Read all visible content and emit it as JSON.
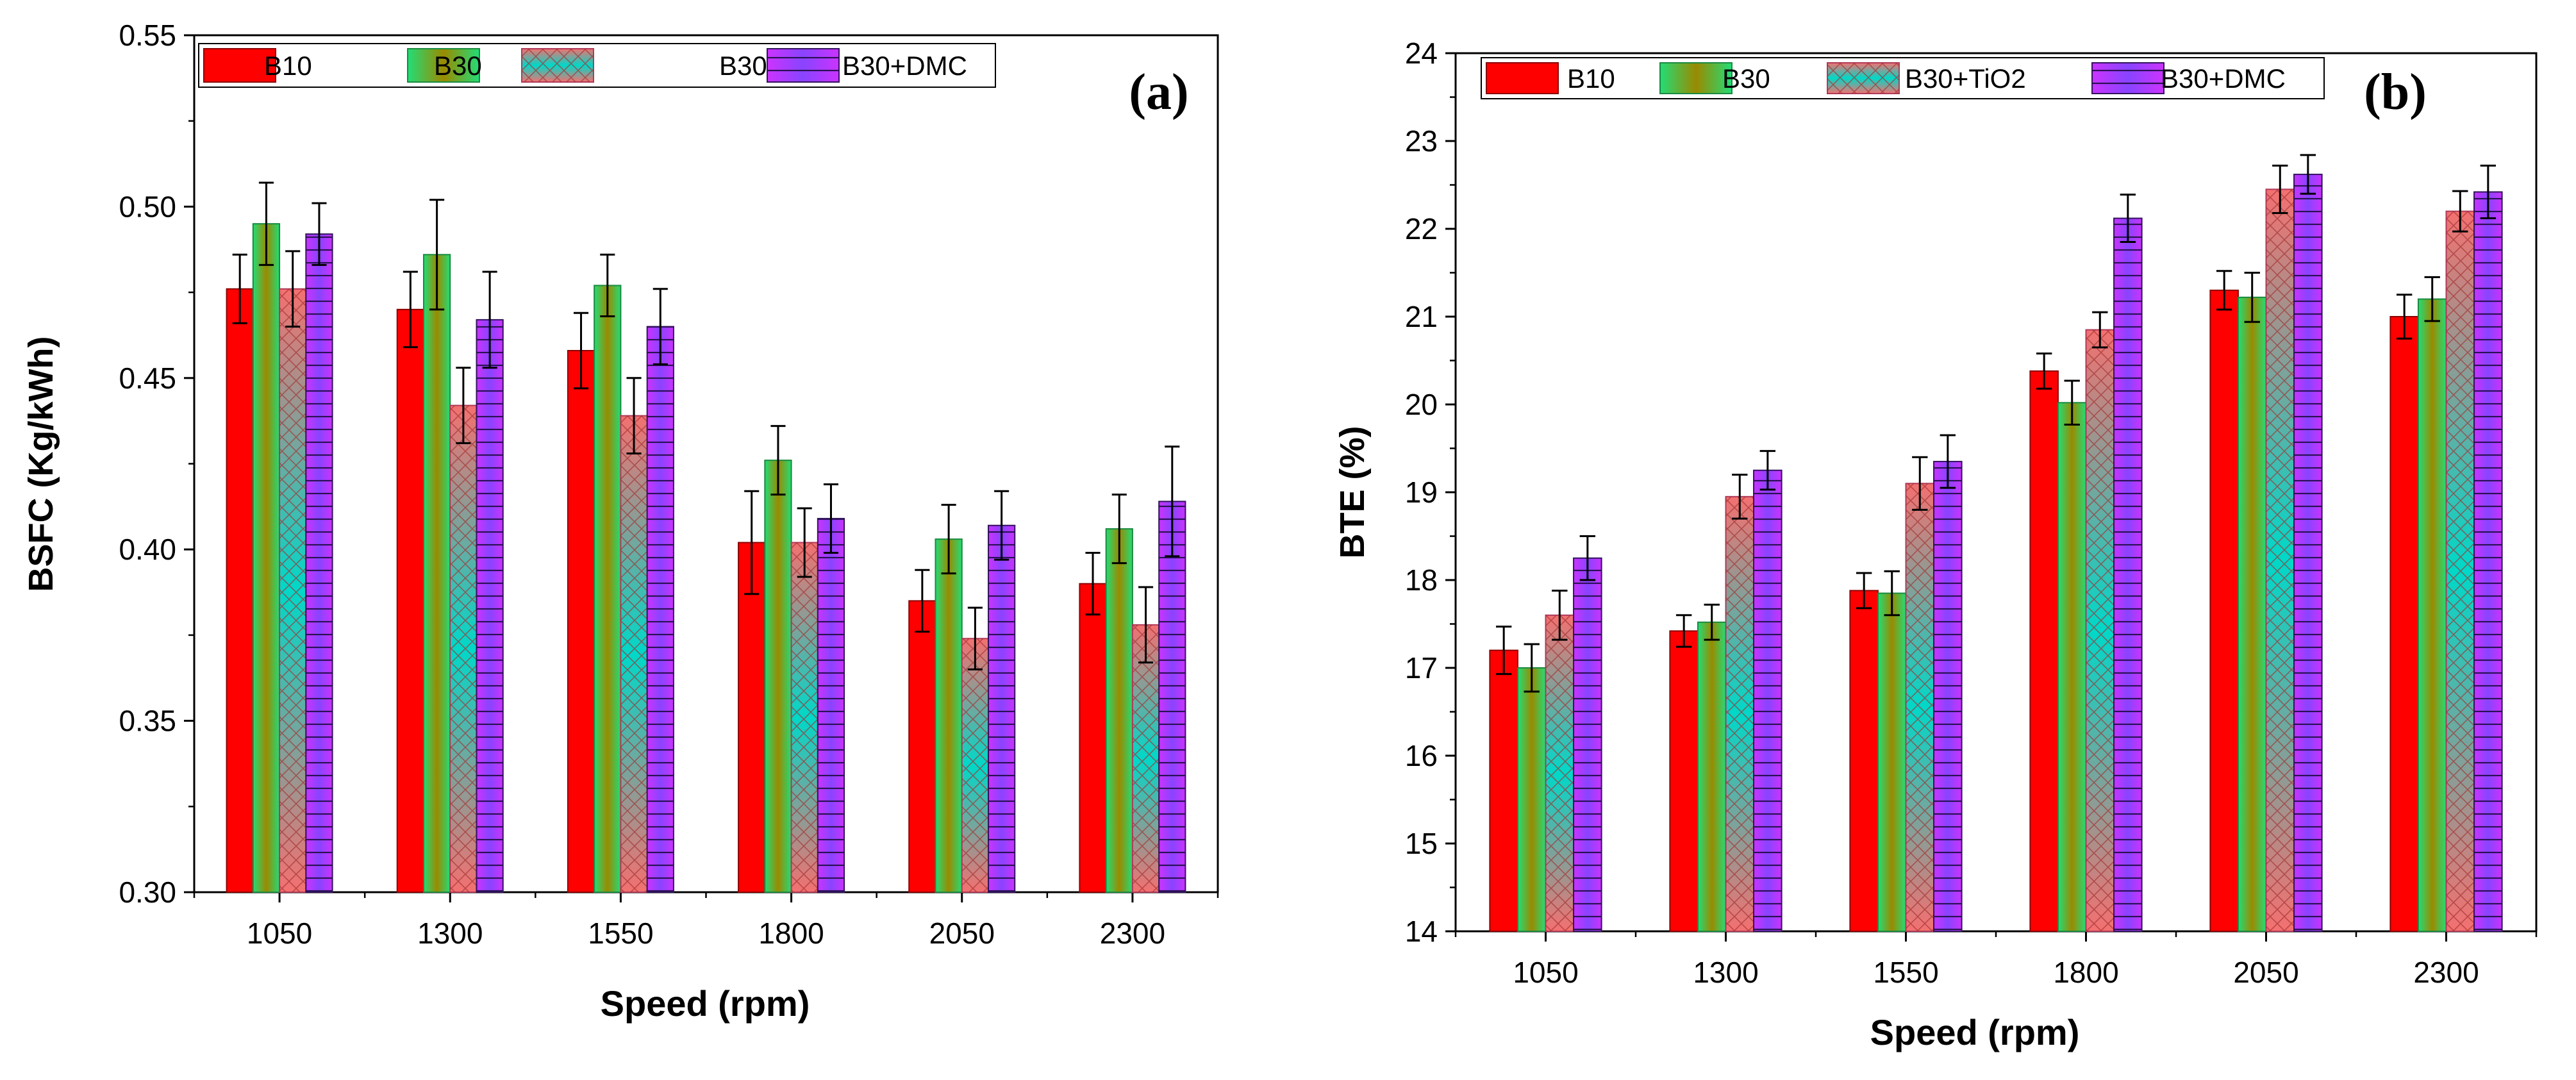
{
  "colors": {
    "B10": "#ff0000",
    "B30": "#22dd77",
    "B30+TiO2": "#f46f6f",
    "B30+DMC": "#cc33ff",
    "B30_mid": "#9a8a00",
    "TiO2_mid": "#00d8c8",
    "DMC_mid": "#8844ff"
  },
  "chart_data": [
    {
      "type": "bar",
      "panel_label": "(a)",
      "categories": [
        "1050",
        "1300",
        "1550",
        "1800",
        "2050",
        "2300"
      ],
      "xlabel": "Speed (rpm)",
      "ylabel": "BSFC (Kg/kWh)",
      "ylim": [
        0.3,
        0.55
      ],
      "yticks": [
        0.3,
        0.35,
        0.4,
        0.45,
        0.5,
        0.55
      ],
      "ytick_labels": [
        "0.30",
        "0.35",
        "0.40",
        "0.45",
        "0.50",
        "0.55"
      ],
      "legend_position": "top-left",
      "series": [
        {
          "name": "B10",
          "values": [
            0.476,
            0.47,
            0.458,
            0.402,
            0.385,
            0.39
          ],
          "errors": [
            0.01,
            0.011,
            0.011,
            0.015,
            0.009,
            0.009
          ]
        },
        {
          "name": "B30",
          "values": [
            0.495,
            0.486,
            0.477,
            0.426,
            0.403,
            0.406
          ],
          "errors": [
            0.012,
            0.016,
            0.009,
            0.01,
            0.01,
            0.01
          ]
        },
        {
          "name": "B30+TiO2",
          "values": [
            0.476,
            0.442,
            0.439,
            0.402,
            0.374,
            0.378
          ],
          "errors": [
            0.011,
            0.011,
            0.011,
            0.01,
            0.009,
            0.011
          ]
        },
        {
          "name": "B30+DMC",
          "values": [
            0.492,
            0.467,
            0.465,
            0.409,
            0.407,
            0.414
          ],
          "errors": [
            0.009,
            0.014,
            0.011,
            0.01,
            0.01,
            0.016
          ]
        }
      ]
    },
    {
      "type": "bar",
      "panel_label": "(b)",
      "categories": [
        "1050",
        "1300",
        "1550",
        "1800",
        "2050",
        "2300"
      ],
      "xlabel": "Speed (rpm)",
      "ylabel": "BTE (%)",
      "ylim": [
        14,
        24
      ],
      "yticks": [
        14,
        15,
        16,
        17,
        18,
        19,
        20,
        21,
        22,
        23,
        24
      ],
      "ytick_labels": [
        "14",
        "15",
        "16",
        "17",
        "18",
        "19",
        "20",
        "21",
        "22",
        "23",
        "24"
      ],
      "legend_position": "top-left",
      "series": [
        {
          "name": "B10",
          "values": [
            17.2,
            17.42,
            17.88,
            20.38,
            21.3,
            21.0
          ],
          "errors": [
            0.27,
            0.18,
            0.2,
            0.2,
            0.22,
            0.25
          ]
        },
        {
          "name": "B30",
          "values": [
            17.0,
            17.52,
            17.85,
            20.02,
            21.22,
            21.2
          ],
          "errors": [
            0.27,
            0.2,
            0.25,
            0.25,
            0.28,
            0.25
          ]
        },
        {
          "name": "B30+TiO2",
          "values": [
            17.6,
            18.95,
            19.1,
            20.85,
            22.45,
            22.2
          ],
          "errors": [
            0.28,
            0.25,
            0.3,
            0.2,
            0.27,
            0.23
          ]
        },
        {
          "name": "B30+DMC",
          "values": [
            18.25,
            19.25,
            19.35,
            22.12,
            22.62,
            22.42
          ],
          "errors": [
            0.25,
            0.22,
            0.3,
            0.27,
            0.22,
            0.3
          ]
        }
      ]
    }
  ]
}
